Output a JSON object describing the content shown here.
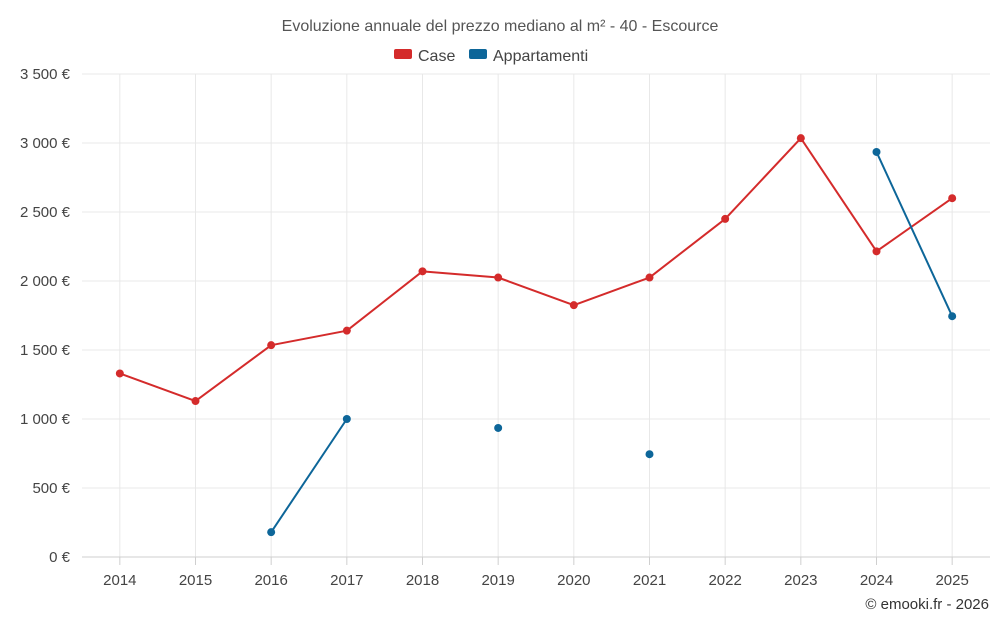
{
  "chart_data": {
    "type": "line",
    "title": "Evoluzione annuale del prezzo mediano al m² - 40 - Escource",
    "categories": [
      "2014",
      "2015",
      "2016",
      "2017",
      "2018",
      "2019",
      "2020",
      "2021",
      "2022",
      "2023",
      "2024",
      "2025"
    ],
    "series": [
      {
        "name": "Case",
        "color": "#d42b2b",
        "values": [
          1330,
          1130,
          1535,
          1640,
          2070,
          2025,
          1825,
          2025,
          2450,
          3035,
          2215,
          2600
        ]
      },
      {
        "name": "Appartamenti",
        "color": "#0d6699",
        "values": [
          null,
          null,
          180,
          1000,
          null,
          935,
          null,
          745,
          null,
          null,
          2935,
          1745
        ]
      }
    ],
    "ylim": [
      0,
      3500
    ],
    "yticks": [
      0,
      500,
      1000,
      1500,
      2000,
      2500,
      3000,
      3500
    ],
    "ytick_labels": [
      "0 €",
      "500 €",
      "1 000 €",
      "1 500 €",
      "2 000 €",
      "2 500 €",
      "3 000 €",
      "3 500 €"
    ],
    "xlabel": "",
    "ylabel": "",
    "grid": true,
    "legend_position": "top-center"
  },
  "credit": "© emooki.fr - 2026"
}
